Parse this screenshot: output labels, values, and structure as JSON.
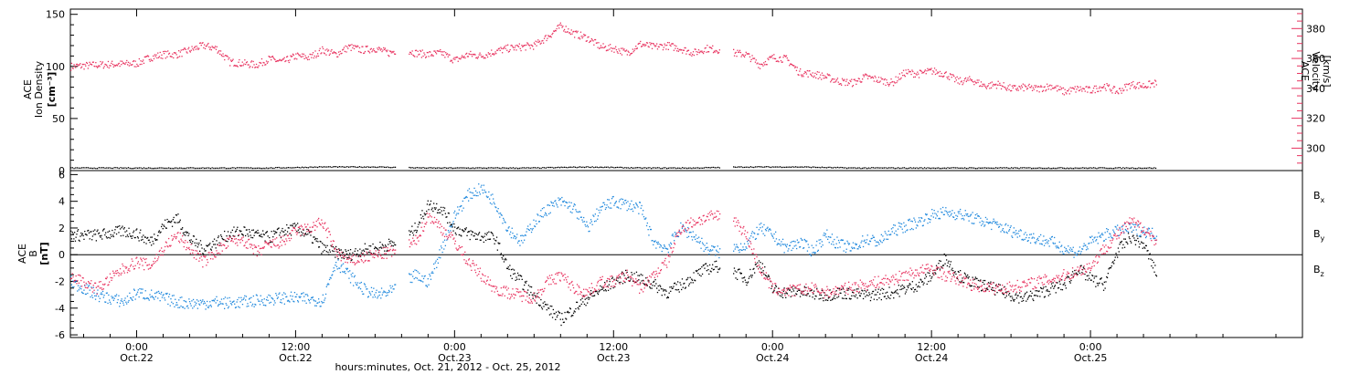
{
  "chart_data": [
    {
      "type": "scatter",
      "panel": "top",
      "ylabel_left": [
        "ACE",
        "Ion Density",
        "[cm⁻³]"
      ],
      "ylabel_right": [
        "ACE",
        "Velocity",
        "[km/s]"
      ],
      "ylim_left": [
        0,
        155
      ],
      "ylim_right": [
        285,
        393
      ],
      "yticks_left": [
        "0",
        "50",
        "100",
        "150"
      ],
      "yticks_right": [
        "300",
        "320",
        "340",
        "360",
        "380"
      ],
      "series": [
        {
          "axis": "right",
          "color": "#e8325f",
          "x": [
            -5,
            -3,
            0,
            1,
            2,
            3,
            4,
            5,
            6,
            7,
            8,
            9,
            10,
            11,
            12,
            13,
            14,
            15,
            16,
            17,
            18,
            19,
            20,
            21,
            22,
            23,
            24,
            25,
            26,
            27,
            28,
            29,
            30,
            31,
            32,
            33,
            34,
            35,
            36,
            37,
            38,
            39,
            40,
            41,
            42,
            43,
            44,
            45,
            46,
            47,
            48,
            49,
            50,
            51,
            52,
            53,
            54,
            55,
            56,
            57,
            58,
            59,
            60,
            61,
            62,
            63,
            64,
            65,
            66,
            67,
            68,
            69,
            70,
            71,
            72,
            73,
            74,
            75,
            76,
            77
          ],
          "y": [
            355,
            356,
            357,
            361,
            363,
            363,
            366,
            369,
            367,
            358,
            357,
            356,
            360,
            358,
            362,
            361,
            366,
            363,
            368,
            366,
            367,
            364,
            367,
            364,
            363,
            364,
            359,
            363,
            362,
            365,
            367,
            368,
            369,
            375,
            382,
            377,
            374,
            368,
            367,
            364,
            370,
            368,
            369,
            367,
            364,
            367,
            366,
            364,
            363,
            356,
            361,
            360,
            351,
            350,
            348,
            345,
            344,
            348,
            346,
            344,
            351,
            350,
            352,
            350,
            345,
            346,
            342,
            343,
            340,
            341,
            340,
            342,
            338,
            340,
            339,
            342,
            338,
            343,
            342,
            344
          ]
        },
        {
          "axis": "left",
          "color": "#000000",
          "x": [
            -5,
            0,
            5,
            10,
            14,
            18,
            22,
            26,
            30,
            34,
            38,
            42,
            46,
            50,
            54,
            58,
            62,
            66,
            70,
            74,
            77
          ],
          "y": [
            3,
            3,
            3,
            3,
            4,
            4,
            3,
            3,
            3,
            4,
            3,
            3,
            4,
            4,
            3,
            3,
            3,
            3,
            3,
            3,
            3
          ]
        }
      ]
    },
    {
      "type": "scatter",
      "panel": "bottom",
      "ylabel": [
        "ACE",
        "B",
        "[nT]"
      ],
      "ylim": [
        -6.2,
        6.3
      ],
      "yticks": [
        "-6",
        "-4",
        "-2",
        "0",
        "2",
        "4",
        "6"
      ],
      "xlabel": "hours:minutes, Oct. 21, 2012 - Oct. 25, 2012",
      "xlim": [
        -5,
        88
      ],
      "xticks": [
        {
          "x": 0,
          "time": "0:00",
          "date": "Oct.22"
        },
        {
          "x": 12,
          "time": "12:00",
          "date": "Oct.22"
        },
        {
          "x": 24,
          "time": "0:00",
          "date": "Oct.23"
        },
        {
          "x": 36,
          "time": "12:00",
          "date": "Oct.23"
        },
        {
          "x": 48,
          "time": "0:00",
          "date": "Oct.24"
        },
        {
          "x": 60,
          "time": "12:00",
          "date": "Oct.24"
        },
        {
          "x": 72,
          "time": "0:00",
          "date": "Oct.25"
        }
      ],
      "legend": [
        {
          "label": "B",
          "sub": "x",
          "color": "#000000"
        },
        {
          "label": "B",
          "sub": "y",
          "color": "#1f88dd"
        },
        {
          "label": "B",
          "sub": "z",
          "color": "#e8325f"
        }
      ],
      "series": [
        {
          "name": "Bx",
          "color": "#000000",
          "x": [
            -5,
            -3,
            -1,
            0,
            1,
            2,
            3,
            4,
            5,
            6,
            7,
            8,
            9,
            10,
            11,
            12,
            13,
            14,
            15,
            16,
            17,
            18,
            19,
            20,
            21,
            22,
            23,
            24,
            25,
            26,
            27,
            28,
            29,
            30,
            31,
            32,
            33,
            34,
            35,
            36,
            37,
            38,
            39,
            40,
            41,
            42,
            43,
            44,
            45,
            46,
            47,
            48,
            49,
            50,
            51,
            52,
            53,
            54,
            55,
            56,
            57,
            58,
            59,
            60,
            61,
            62,
            63,
            64,
            65,
            66,
            67,
            68,
            69,
            70,
            71,
            72,
            73,
            74,
            75,
            76,
            77
          ],
          "y": [
            1.5,
            1.5,
            1.8,
            1.6,
            1.0,
            2.2,
            2.8,
            1.2,
            0.5,
            1.0,
            1.6,
            1.8,
            1.5,
            1.3,
            1.8,
            2.0,
            1.5,
            0.5,
            0.2,
            0.0,
            0.4,
            0.5,
            0.8,
            1.0,
            2.0,
            3.8,
            3.5,
            2.0,
            1.6,
            1.4,
            1.3,
            -1.0,
            -2.0,
            -3.0,
            -4.0,
            -4.8,
            -4.0,
            -3.2,
            -2.6,
            -2.0,
            -1.5,
            -1.8,
            -2.2,
            -2.8,
            -2.3,
            -1.6,
            -1.0,
            -0.8,
            -1.2,
            -1.8,
            -0.5,
            -2.6,
            -2.8,
            -2.7,
            -2.9,
            -3.0,
            -2.8,
            -2.9,
            -3.0,
            -2.9,
            -2.8,
            -2.5,
            -2.2,
            -1.5,
            -0.2,
            -1.5,
            -2.0,
            -2.3,
            -2.6,
            -3.0,
            -3.2,
            -2.9,
            -2.5,
            -2.2,
            -1.0,
            -1.8,
            -2.2,
            0.3,
            1.4,
            0.8,
            -1.5
          ]
        },
        {
          "name": "By",
          "color": "#1f88dd",
          "x": [
            -5,
            -3,
            -1,
            0,
            1,
            2,
            3,
            4,
            5,
            6,
            7,
            8,
            9,
            10,
            11,
            12,
            13,
            14,
            15,
            16,
            17,
            18,
            19,
            20,
            21,
            22,
            23,
            24,
            25,
            26,
            27,
            28,
            29,
            30,
            31,
            32,
            33,
            34,
            35,
            36,
            37,
            38,
            39,
            40,
            41,
            42,
            43,
            44,
            45,
            46,
            47,
            48,
            49,
            50,
            51,
            52,
            53,
            54,
            55,
            56,
            57,
            58,
            59,
            60,
            61,
            62,
            63,
            64,
            65,
            66,
            67,
            68,
            69,
            70,
            71,
            72,
            73,
            74,
            75,
            76,
            77
          ],
          "y": [
            -2.0,
            -3.0,
            -3.5,
            -2.8,
            -3.0,
            -3.2,
            -3.5,
            -3.6,
            -3.6,
            -3.5,
            -3.6,
            -3.5,
            -3.4,
            -3.3,
            -3.2,
            -3.2,
            -3.3,
            -3.4,
            -0.5,
            -1.5,
            -2.5,
            -3.0,
            -2.8,
            -2.2,
            -1.5,
            -2.0,
            0.5,
            3.0,
            4.5,
            5.0,
            4.0,
            2.0,
            1.0,
            2.5,
            3.5,
            4.0,
            3.5,
            2.0,
            3.5,
            4.0,
            3.8,
            3.5,
            1.0,
            0.5,
            2.0,
            1.5,
            0.5,
            0.2,
            0.5,
            0.8,
            2.0,
            1.5,
            0.5,
            1.0,
            0.3,
            1.5,
            0.8,
            0.5,
            1.2,
            1.0,
            1.8,
            2.2,
            2.5,
            3.0,
            3.2,
            3.1,
            2.8,
            2.5,
            2.2,
            1.8,
            1.5,
            1.2,
            1.0,
            0.5,
            0.2,
            1.0,
            1.5,
            1.8,
            2.0,
            1.8,
            1.5
          ]
        },
        {
          "name": "Bz",
          "color": "#e8325f",
          "x": [
            -5,
            -3,
            -1,
            0,
            1,
            2,
            3,
            4,
            5,
            6,
            7,
            8,
            9,
            10,
            11,
            12,
            13,
            14,
            15,
            16,
            17,
            18,
            19,
            20,
            21,
            22,
            23,
            24,
            25,
            26,
            27,
            28,
            29,
            30,
            31,
            32,
            33,
            34,
            35,
            36,
            37,
            38,
            39,
            40,
            41,
            42,
            43,
            44,
            45,
            46,
            47,
            48,
            49,
            50,
            51,
            52,
            53,
            54,
            55,
            56,
            57,
            58,
            59,
            60,
            61,
            62,
            63,
            64,
            65,
            66,
            67,
            68,
            69,
            70,
            71,
            72,
            73,
            74,
            75,
            76,
            77
          ],
          "y": [
            -1.5,
            -2.5,
            -1.0,
            -0.5,
            -0.8,
            0.5,
            1.5,
            0.5,
            -0.5,
            0.3,
            1.0,
            1.2,
            0.2,
            0.8,
            1.0,
            1.8,
            2.0,
            2.5,
            0.3,
            -0.5,
            -0.2,
            0.0,
            0.2,
            0.5,
            1.0,
            3.0,
            2.0,
            1.0,
            -0.5,
            -1.5,
            -2.5,
            -2.8,
            -3.0,
            -3.2,
            -2.0,
            -1.5,
            -2.5,
            -2.8,
            -2.0,
            -2.0,
            -1.5,
            -2.5,
            -1.5,
            -0.5,
            2.0,
            2.5,
            2.8,
            3.0,
            2.8,
            1.5,
            -1.0,
            -2.5,
            -2.7,
            -2.6,
            -2.5,
            -2.8,
            -2.6,
            -2.4,
            -2.2,
            -2.0,
            -1.8,
            -1.5,
            -1.2,
            -1.0,
            -1.5,
            -1.8,
            -2.2,
            -2.4,
            -2.5,
            -2.4,
            -2.2,
            -2.0,
            -1.8,
            -1.5,
            -1.2,
            -0.8,
            0.5,
            1.5,
            2.5,
            2.0,
            1.0
          ]
        }
      ]
    }
  ]
}
